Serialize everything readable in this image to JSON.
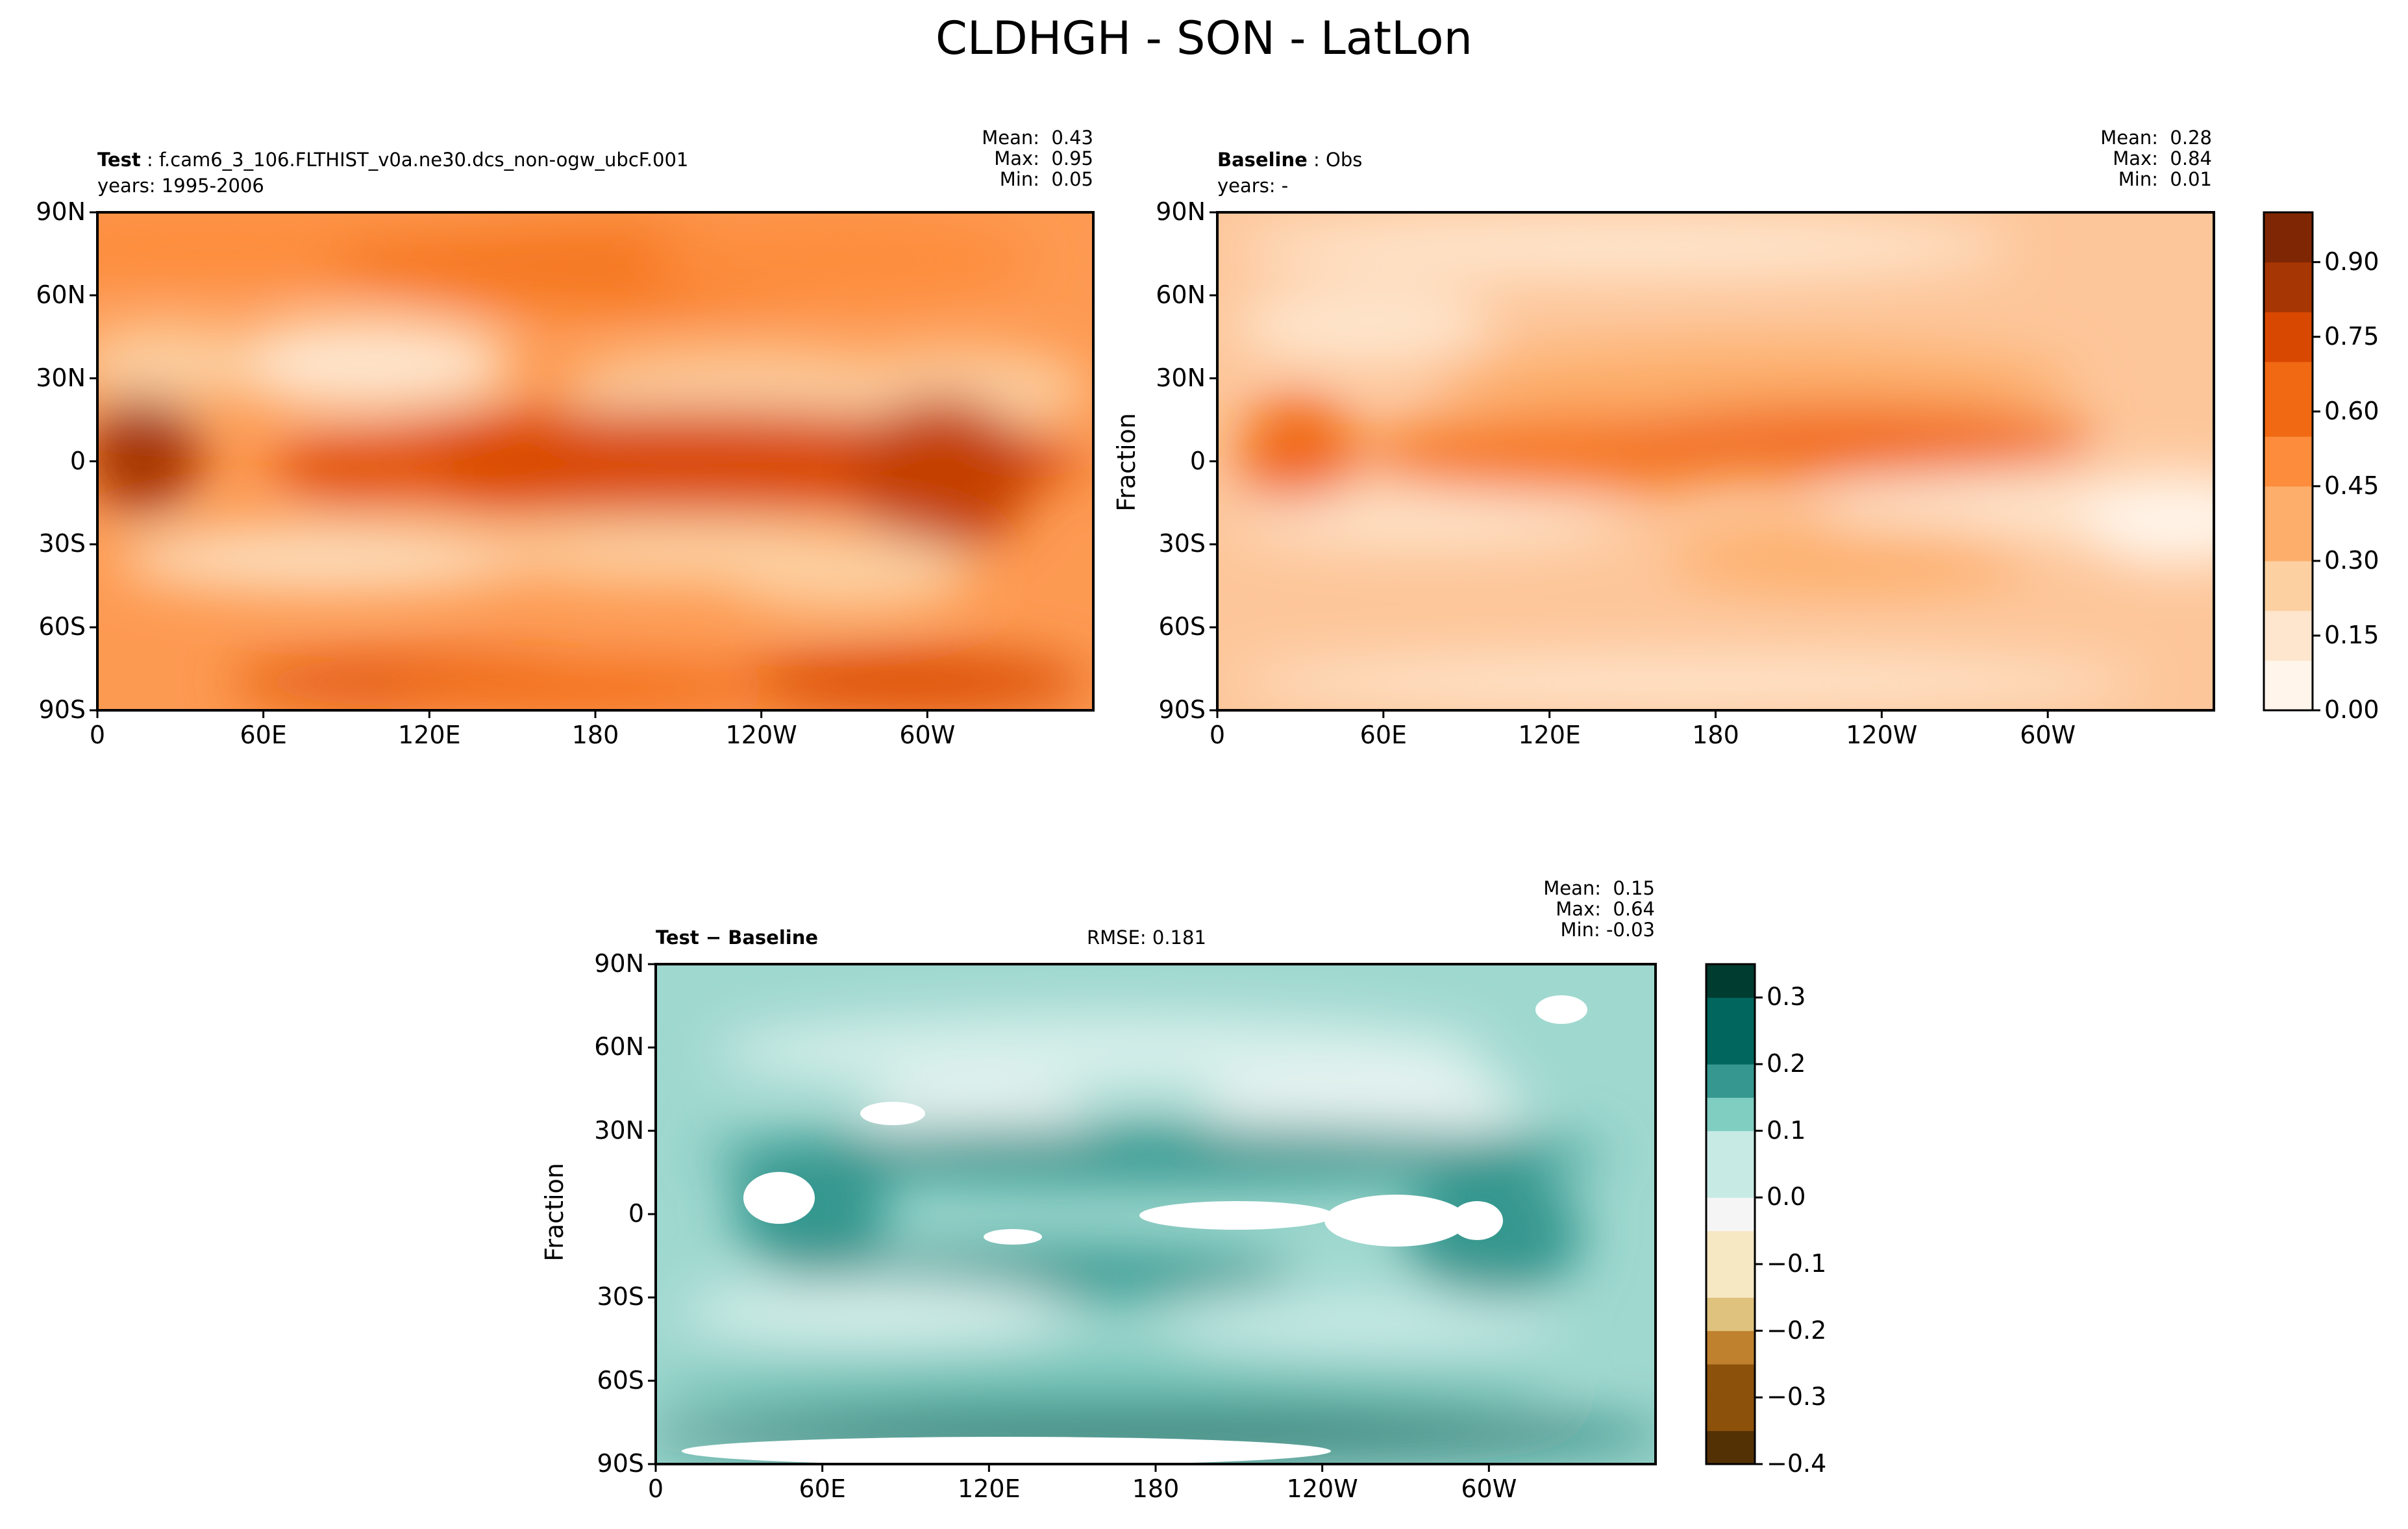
{
  "figure": {
    "title": "CLDHGH - SON - LatLon"
  },
  "chart_data": [
    {
      "type": "heatmap",
      "panel": "test",
      "label_bold": "Test",
      "label_text": "f.cam6_3_106.FLTHIST_v0a.ne30.dcs_non-ogw_ubcF.001",
      "years": "years: 1995-2006",
      "stats": {
        "mean": "Mean:  0.43",
        "max": "Max:  0.95",
        "min": "Min:  0.05"
      },
      "x_ticks": [
        "0",
        "60E",
        "120E",
        "180",
        "120W",
        "60W"
      ],
      "y_ticks": [
        "90N",
        "60N",
        "30N",
        "0",
        "30S",
        "60S",
        "90S"
      ],
      "colormap": "Oranges",
      "value_range": [
        0,
        1.0
      ]
    },
    {
      "type": "heatmap",
      "panel": "baseline",
      "label_bold": "Baseline",
      "label_text": "Obs",
      "years": "years: -",
      "stats": {
        "mean": "Mean:  0.28",
        "max": "Max:  0.84",
        "min": "Min:  0.01"
      },
      "x_ticks": [
        "0",
        "60E",
        "120E",
        "180",
        "120W",
        "60W"
      ],
      "y_ticks": [
        "90N",
        "60N",
        "30N",
        "0",
        "30S",
        "60S",
        "90S"
      ],
      "ylabel": "Fraction",
      "colorbar_ticks": [
        "0.00",
        "0.15",
        "0.30",
        "0.45",
        "0.60",
        "0.75",
        "0.90"
      ],
      "colormap": "Oranges",
      "value_range": [
        0,
        1.0
      ]
    },
    {
      "type": "heatmap",
      "panel": "difference",
      "label_bold": "Test − Baseline",
      "rmse": "RMSE: 0.181",
      "stats": {
        "mean": "Mean:  0.15",
        "max": "Max:  0.64",
        "min": "Min: -0.03"
      },
      "x_ticks": [
        "0",
        "60E",
        "120E",
        "180",
        "120W",
        "60W"
      ],
      "y_ticks": [
        "90N",
        "60N",
        "30N",
        "0",
        "30S",
        "60S",
        "90S"
      ],
      "ylabel": "Fraction",
      "colorbar_ticks": [
        "0.3",
        "0.2",
        "0.1",
        "0.0",
        "−0.1",
        "−0.2",
        "−0.3",
        "−0.4"
      ],
      "colormap": "BrBG",
      "value_range": [
        -0.4,
        0.35
      ]
    }
  ],
  "colors": {
    "oranges": [
      "#fff5eb",
      "#fee6ce",
      "#fdd0a2",
      "#fdae6b",
      "#fd8d3c",
      "#f16913",
      "#d94801",
      "#a63603",
      "#7f2704"
    ],
    "brbg": [
      "#543005",
      "#8c510a",
      "#bf812d",
      "#dfc27d",
      "#f6e8c3",
      "#f5f5f5",
      "#c7eae5",
      "#80cdc1",
      "#35978f",
      "#01665e",
      "#003c30"
    ]
  }
}
